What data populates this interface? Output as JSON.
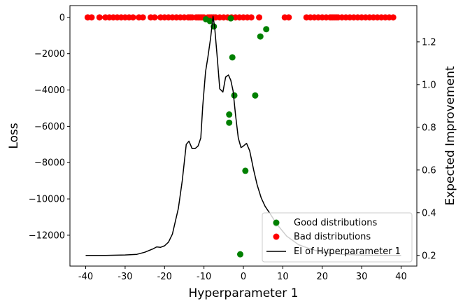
{
  "chart_data": {
    "type": "scatter",
    "xlabel": "Hyperparameter 1",
    "ylabel": "Loss",
    "y2label": "Expected Improvement",
    "xlim": [
      -44,
      44
    ],
    "ylim": [
      -13700,
      650
    ],
    "y2lim": [
      0.15,
      1.37
    ],
    "xticks": [
      -40,
      -30,
      -20,
      -10,
      0,
      10,
      20,
      30,
      40
    ],
    "yticks": [
      0,
      -2000,
      -4000,
      -6000,
      -8000,
      -10000,
      -12000
    ],
    "yticks_labels": [
      "0",
      "−2000",
      "−4000",
      "−6000",
      "−8000",
      "−10000",
      "−12000"
    ],
    "y2ticks": [
      0.2,
      0.4,
      0.6,
      0.8,
      1.0,
      1.2
    ],
    "y2ticks_labels": [
      "0.2",
      "0.4",
      "0.6",
      "0.8",
      "1.0",
      "1.2"
    ],
    "legend_position": "lower-right",
    "series": [
      {
        "name": "Good distributions",
        "kind": "scatter",
        "color": "#008000",
        "points": [
          [
            -9.5,
            -100
          ],
          [
            -8.5,
            -200
          ],
          [
            -7.5,
            -500
          ],
          [
            -3.2,
            -50
          ],
          [
            -2.8,
            -2200
          ],
          [
            -2.3,
            -4300
          ],
          [
            -3.6,
            -5350
          ],
          [
            -3.6,
            -5800
          ],
          [
            0.5,
            -8450
          ],
          [
            -0.8,
            -13050
          ],
          [
            3,
            -4300
          ],
          [
            4.3,
            -1050
          ],
          [
            5.8,
            -650
          ],
          [
            8.3,
            -11350
          ]
        ]
      },
      {
        "name": "Bad distributions",
        "kind": "scatter",
        "color": "#ff0000",
        "points": [
          [
            -39.5,
            0
          ],
          [
            -38.5,
            0
          ],
          [
            -36.5,
            0
          ],
          [
            -35,
            0
          ],
          [
            -34,
            0
          ],
          [
            -33,
            0
          ],
          [
            -32,
            0
          ],
          [
            -31,
            0
          ],
          [
            -30,
            0
          ],
          [
            -29,
            0
          ],
          [
            -28,
            0
          ],
          [
            -26.5,
            0
          ],
          [
            -25.5,
            0
          ],
          [
            -23.5,
            0
          ],
          [
            -22.5,
            0
          ],
          [
            -21,
            0
          ],
          [
            -20,
            0
          ],
          [
            -19,
            0
          ],
          [
            -18,
            0
          ],
          [
            -17,
            0
          ],
          [
            -16,
            0
          ],
          [
            -15,
            0
          ],
          [
            -14,
            0
          ],
          [
            -13.5,
            0
          ],
          [
            -13,
            0
          ],
          [
            -12,
            0
          ],
          [
            -11.5,
            0
          ],
          [
            -11,
            0
          ],
          [
            -10.5,
            0
          ],
          [
            -10,
            0
          ],
          [
            -9,
            0
          ],
          [
            -8.5,
            0
          ],
          [
            -8,
            0
          ],
          [
            -7.5,
            0
          ],
          [
            -7,
            0
          ],
          [
            -6,
            0
          ],
          [
            -5,
            0
          ],
          [
            -4,
            0
          ],
          [
            -3,
            0
          ],
          [
            -2,
            0
          ],
          [
            -1,
            0
          ],
          [
            0,
            0
          ],
          [
            1,
            0
          ],
          [
            2,
            0
          ],
          [
            4,
            0
          ],
          [
            10.5,
            0
          ],
          [
            11.5,
            0
          ],
          [
            16,
            0
          ],
          [
            17,
            0
          ],
          [
            18,
            0
          ],
          [
            19,
            0
          ],
          [
            20,
            0
          ],
          [
            21,
            0
          ],
          [
            22,
            0
          ],
          [
            22.5,
            0
          ],
          [
            23,
            0
          ],
          [
            23.5,
            0
          ],
          [
            24,
            0
          ],
          [
            25,
            0
          ],
          [
            26,
            0
          ],
          [
            27,
            0
          ],
          [
            28,
            0
          ],
          [
            29,
            0
          ],
          [
            30,
            0
          ],
          [
            31,
            0
          ],
          [
            32,
            0
          ],
          [
            33,
            0
          ],
          [
            34,
            0
          ],
          [
            35,
            0
          ],
          [
            36,
            0
          ],
          [
            37,
            0
          ],
          [
            38,
            0
          ]
        ]
      },
      {
        "name": "EI of Hyperparameter 1",
        "kind": "line",
        "axis": "right",
        "color": "#000000",
        "points": [
          [
            -40,
            0.2
          ],
          [
            -35,
            0.2
          ],
          [
            -30,
            0.202
          ],
          [
            -27,
            0.205
          ],
          [
            -25,
            0.215
          ],
          [
            -23,
            0.23
          ],
          [
            -22,
            0.24
          ],
          [
            -21,
            0.238
          ],
          [
            -20,
            0.245
          ],
          [
            -19,
            0.262
          ],
          [
            -18,
            0.3
          ],
          [
            -16.5,
            0.42
          ],
          [
            -15.5,
            0.55
          ],
          [
            -14.5,
            0.72
          ],
          [
            -13.8,
            0.735
          ],
          [
            -13,
            0.7
          ],
          [
            -12.3,
            0.7
          ],
          [
            -11.5,
            0.712
          ],
          [
            -10.8,
            0.75
          ],
          [
            -10.3,
            0.9
          ],
          [
            -9.6,
            1.06
          ],
          [
            -9,
            1.13
          ],
          [
            -8.3,
            1.22
          ],
          [
            -7.7,
            1.32
          ],
          [
            -7.3,
            1.27
          ],
          [
            -6.6,
            1.12
          ],
          [
            -6,
            0.98
          ],
          [
            -5.2,
            0.965
          ],
          [
            -4.5,
            1.035
          ],
          [
            -3.8,
            1.045
          ],
          [
            -3.2,
            1.02
          ],
          [
            -2.6,
            0.97
          ],
          [
            -2,
            0.86
          ],
          [
            -1.3,
            0.75
          ],
          [
            -0.6,
            0.705
          ],
          [
            0,
            0.712
          ],
          [
            0.8,
            0.725
          ],
          [
            1.6,
            0.69
          ],
          [
            2.6,
            0.6
          ],
          [
            3.5,
            0.53
          ],
          [
            4.5,
            0.47
          ],
          [
            5.5,
            0.43
          ],
          [
            6.8,
            0.395
          ],
          [
            8,
            0.36
          ],
          [
            9,
            0.335
          ],
          [
            11,
            0.29
          ],
          [
            14,
            0.25
          ],
          [
            17,
            0.23
          ],
          [
            20,
            0.215
          ],
          [
            25,
            0.205
          ],
          [
            30,
            0.201
          ],
          [
            35,
            0.2
          ],
          [
            40,
            0.2
          ]
        ]
      }
    ]
  }
}
